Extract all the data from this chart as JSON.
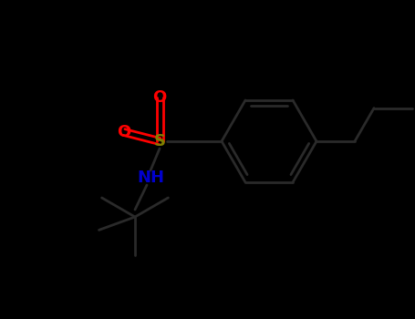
{
  "background_color": "#000000",
  "bond_color": "#1a1a1a",
  "S_color": "#808000",
  "O_color": "#ff0000",
  "N_color": "#0000cd",
  "C_color": "#1a1a1a",
  "bond_width": 2.0,
  "figsize": [
    4.55,
    3.5
  ],
  "dpi": 100,
  "font_size_large": 13,
  "font_size_small": 11,
  "label_S": "S",
  "label_O1": "O",
  "label_O2": "O",
  "label_NH": "NH",
  "ring_bond_color": "#2a2a2a",
  "chain_bond_color": "#1e1e1e"
}
